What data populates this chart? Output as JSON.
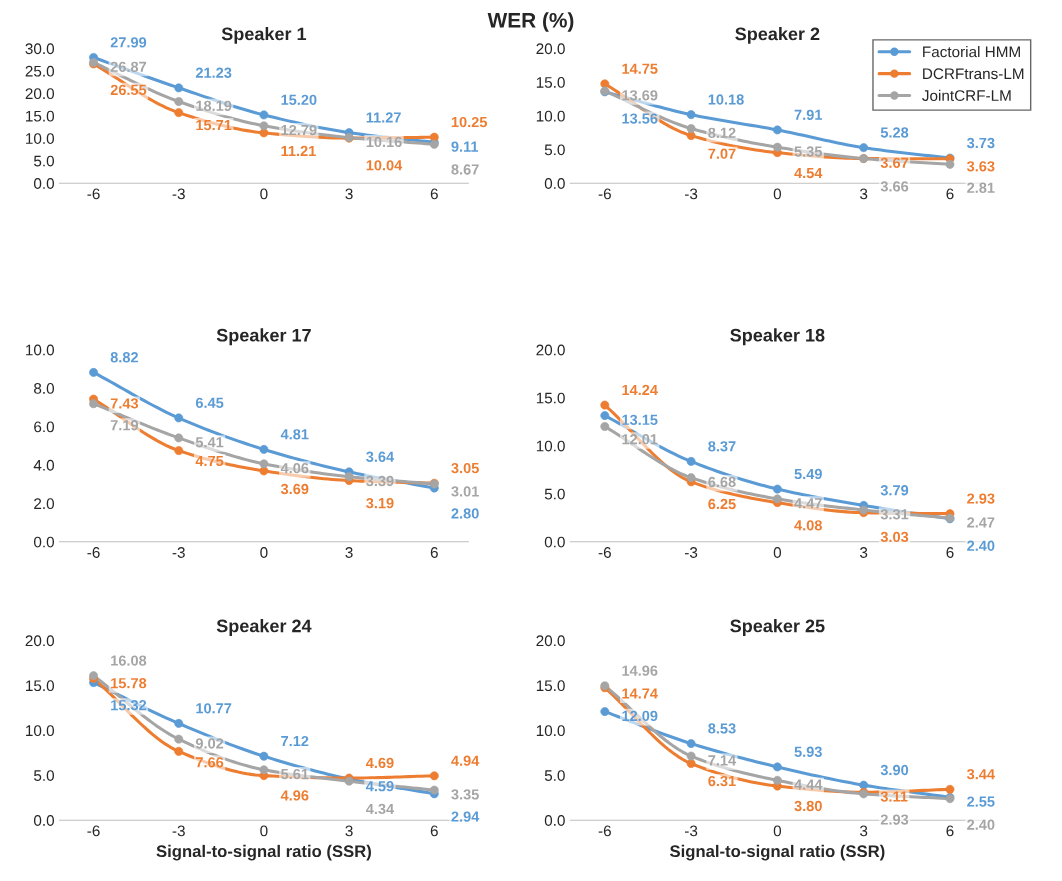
{
  "chart_data": [
    {
      "type": "other",
      "title": "WER (%)"
    },
    {
      "type": "line",
      "title": "Speaker 1",
      "categories": [
        "-6",
        "-3",
        "0",
        "3",
        "6"
      ],
      "ylim": [
        0,
        30
      ],
      "yticks": [
        {
          "value": 0,
          "label": "0.0"
        },
        {
          "value": 5,
          "label": "5.0"
        },
        {
          "value": 10,
          "label": "10.0"
        },
        {
          "value": 15,
          "label": "15.0"
        },
        {
          "value": 20,
          "label": "20.0"
        },
        {
          "value": 25,
          "label": "25.0"
        },
        {
          "value": 30,
          "label": "30.0"
        }
      ],
      "marker": "circle",
      "series": [
        {
          "color": "#5b9bd5",
          "values": [
            27.99,
            21.23,
            15.2,
            11.27,
            9.11
          ],
          "value_labels": [
            "27.99",
            "21.23",
            "15.20",
            "11.27",
            "9.11"
          ]
        },
        {
          "color": "#ed7d31",
          "values": [
            26.55,
            15.71,
            11.21,
            10.04,
            10.25
          ],
          "value_labels": [
            "26.55",
            "15.71",
            "11.21",
            "10.04",
            "10.25"
          ]
        },
        {
          "color": "#a5a5a5",
          "values": [
            26.87,
            18.19,
            12.79,
            10.16,
            8.67
          ],
          "value_labels": [
            "26.87",
            "18.19",
            "12.79",
            "10.16",
            "8.67"
          ]
        }
      ]
    },
    {
      "type": "line",
      "title": "Speaker 2",
      "categories": [
        "-6",
        "-3",
        "0",
        "3",
        "6"
      ],
      "ylim": [
        0,
        20
      ],
      "yticks": [
        {
          "value": 0,
          "label": "0.0"
        },
        {
          "value": 5,
          "label": "5.0"
        },
        {
          "value": 10,
          "label": "10.0"
        },
        {
          "value": 15,
          "label": "15.0"
        },
        {
          "value": 20,
          "label": "20.0"
        }
      ],
      "marker": "circle",
      "legend": "top right",
      "series": [
        {
          "name": "Factorial HMM",
          "color": "#5b9bd5",
          "values": [
            13.56,
            10.18,
            7.91,
            5.28,
            3.73
          ],
          "value_labels": [
            "13.56",
            "10.18",
            "7.91",
            "5.28",
            "3.73"
          ]
        },
        {
          "name": "DCRFtrans-LM",
          "color": "#ed7d31",
          "values": [
            14.75,
            7.07,
            4.54,
            3.67,
            3.63
          ],
          "value_labels": [
            "14.75",
            "7.07",
            "4.54",
            "3.67",
            "3.63"
          ]
        },
        {
          "name": "JointCRF-LM",
          "color": "#a5a5a5",
          "values": [
            13.69,
            8.12,
            5.35,
            3.66,
            2.81
          ],
          "value_labels": [
            "13.69",
            "8.12",
            "5.35",
            "3.66",
            "2.81"
          ]
        }
      ]
    },
    {
      "type": "line",
      "title": "Speaker 17",
      "categories": [
        "-6",
        "-3",
        "0",
        "3",
        "6"
      ],
      "ylim": [
        0,
        10
      ],
      "yticks": [
        {
          "value": 0,
          "label": "0.0"
        },
        {
          "value": 2,
          "label": "2.0"
        },
        {
          "value": 4,
          "label": "4.0"
        },
        {
          "value": 6,
          "label": "6.0"
        },
        {
          "value": 8,
          "label": "8.0"
        },
        {
          "value": 10,
          "label": "10.0"
        }
      ],
      "marker": "circle",
      "series": [
        {
          "color": "#5b9bd5",
          "values": [
            8.82,
            6.45,
            4.81,
            3.64,
            2.8
          ],
          "value_labels": [
            "8.82",
            "6.45",
            "4.81",
            "3.64",
            "2.80"
          ]
        },
        {
          "color": "#ed7d31",
          "values": [
            7.43,
            4.75,
            3.69,
            3.19,
            3.05
          ],
          "value_labels": [
            "7.43",
            "4.75",
            "3.69",
            "3.19",
            "3.05"
          ]
        },
        {
          "color": "#a5a5a5",
          "values": [
            7.19,
            5.41,
            4.06,
            3.39,
            3.01
          ],
          "value_labels": [
            "7.19",
            "5.41",
            "4.06",
            "3.39",
            "3.01"
          ]
        }
      ]
    },
    {
      "type": "line",
      "title": "Speaker 18",
      "categories": [
        "-6",
        "-3",
        "0",
        "3",
        "6"
      ],
      "ylim": [
        0,
        20
      ],
      "yticks": [
        {
          "value": 0,
          "label": "0.0"
        },
        {
          "value": 5,
          "label": "5.0"
        },
        {
          "value": 10,
          "label": "10.0"
        },
        {
          "value": 15,
          "label": "15.0"
        },
        {
          "value": 20,
          "label": "20.0"
        }
      ],
      "marker": "circle",
      "series": [
        {
          "color": "#5b9bd5",
          "values": [
            13.15,
            8.37,
            5.49,
            3.79,
            2.4
          ],
          "value_labels": [
            "13.15",
            "8.37",
            "5.49",
            "3.79",
            "2.40"
          ]
        },
        {
          "color": "#ed7d31",
          "values": [
            14.24,
            6.25,
            4.08,
            3.03,
            2.93
          ],
          "value_labels": [
            "14.24",
            "6.25",
            "4.08",
            "3.03",
            "2.93"
          ]
        },
        {
          "color": "#a5a5a5",
          "values": [
            12.01,
            6.68,
            4.47,
            3.31,
            2.47
          ],
          "value_labels": [
            "12.01",
            "6.68",
            "4.47",
            "3.31",
            "2.47"
          ]
        }
      ]
    },
    {
      "type": "line",
      "title": "Speaker 24",
      "xlabel": "Signal-to-signal ratio (SSR)",
      "categories": [
        "-6",
        "-3",
        "0",
        "3",
        "6"
      ],
      "ylim": [
        0,
        20
      ],
      "yticks": [
        {
          "value": 0,
          "label": "0.0"
        },
        {
          "value": 5,
          "label": "5.0"
        },
        {
          "value": 10,
          "label": "10.0"
        },
        {
          "value": 15,
          "label": "15.0"
        },
        {
          "value": 20,
          "label": "20.0"
        }
      ],
      "marker": "circle",
      "series": [
        {
          "color": "#5b9bd5",
          "values": [
            15.32,
            10.77,
            7.12,
            4.59,
            2.94
          ],
          "value_labels": [
            "15.32",
            "10.77",
            "7.12",
            "4.59",
            "2.94"
          ]
        },
        {
          "color": "#ed7d31",
          "values": [
            15.78,
            7.66,
            4.96,
            4.69,
            4.94
          ],
          "value_labels": [
            "15.78",
            "7.66",
            "4.96",
            "4.69",
            "4.94"
          ]
        },
        {
          "color": "#a5a5a5",
          "values": [
            16.08,
            9.02,
            5.61,
            4.34,
            3.35
          ],
          "value_labels": [
            "16.08",
            "9.02",
            "5.61",
            "4.34",
            "3.35"
          ]
        }
      ]
    },
    {
      "type": "line",
      "title": "Speaker 25",
      "xlabel": "Signal-to-signal ratio (SSR)",
      "categories": [
        "-6",
        "-3",
        "0",
        "3",
        "6"
      ],
      "ylim": [
        0,
        20
      ],
      "yticks": [
        {
          "value": 0,
          "label": "0.0"
        },
        {
          "value": 5,
          "label": "5.0"
        },
        {
          "value": 10,
          "label": "10.0"
        },
        {
          "value": 15,
          "label": "15.0"
        },
        {
          "value": 20,
          "label": "20.0"
        }
      ],
      "marker": "circle",
      "series": [
        {
          "color": "#5b9bd5",
          "values": [
            12.09,
            8.53,
            5.93,
            3.9,
            2.55
          ],
          "value_labels": [
            "12.09",
            "8.53",
            "5.93",
            "3.90",
            "2.55"
          ]
        },
        {
          "color": "#ed7d31",
          "values": [
            14.74,
            6.31,
            3.8,
            3.11,
            3.44
          ],
          "value_labels": [
            "14.74",
            "6.31",
            "3.80",
            "3.11",
            "3.44"
          ]
        },
        {
          "color": "#a5a5a5",
          "values": [
            14.96,
            7.14,
            4.44,
            2.93,
            2.4
          ],
          "value_labels": [
            "14.96",
            "7.14",
            "4.44",
            "2.93",
            "2.40"
          ]
        }
      ]
    }
  ]
}
